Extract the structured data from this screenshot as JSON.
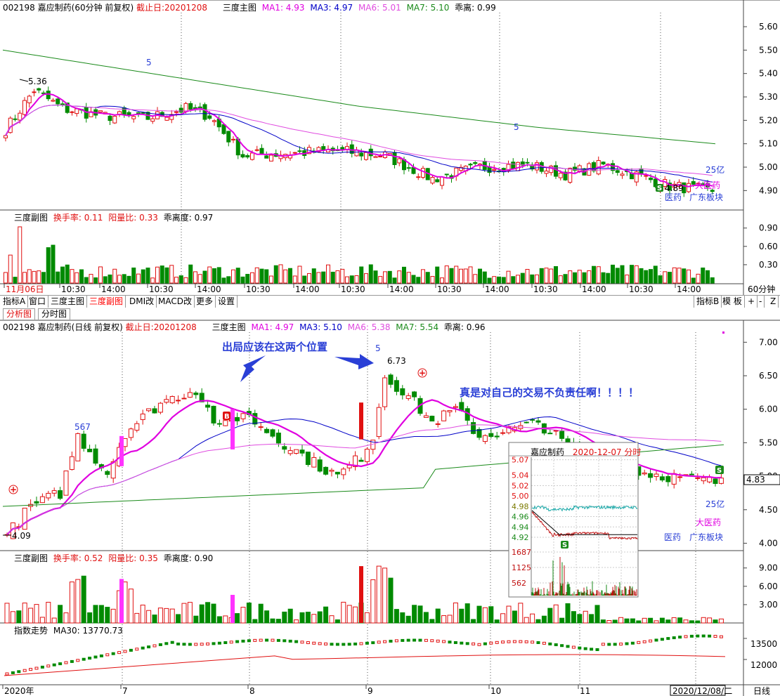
{
  "colors": {
    "up": "#e01010",
    "down": "#008a00",
    "ma1": "#e000e0",
    "ma3": "#0000c8",
    "ma6": "#e04ce0",
    "ma7": "#1a8a1a",
    "accent": "#e01010",
    "grid": "#333333"
  },
  "chart_data": [
    {
      "panel": "top-main",
      "type": "candlestick",
      "symbol": "002198",
      "name": "嘉应制药",
      "period": "60分钟 前复权",
      "cutoff_label": "截止日:20201208",
      "indicator": "三度主图",
      "ma": [
        {
          "name": "MA1",
          "value": "4.93"
        },
        {
          "name": "MA3",
          "value": "4.97"
        },
        {
          "name": "MA6",
          "value": "5.01"
        },
        {
          "name": "MA7",
          "value": "5.10"
        }
      ],
      "deviation": "乖离: 0.99",
      "ylim": [
        4.82,
        5.66
      ],
      "yticks": [
        "5.60",
        "5.50",
        "5.40",
        "5.30",
        "5.20",
        "5.10",
        "5.00",
        "4.90"
      ],
      "ma7_series": [
        5.5,
        5.38,
        5.26,
        5.17,
        5.1
      ],
      "annotations": [
        "5",
        "5",
        "5.36",
        "4.89",
        "25亿",
        "大医药",
        "医药",
        "广东板块",
        "S"
      ]
    },
    {
      "panel": "top-sub",
      "type": "bar",
      "indicator": "三度副图",
      "fields": [
        {
          "label": "换手率",
          "value": "0.11"
        },
        {
          "label": "阳量比",
          "value": "0.33"
        },
        {
          "label": "乖离度",
          "value": "0.97"
        }
      ],
      "ylim": [
        0,
        1.0
      ],
      "yticks": [
        "0.90",
        "0.60",
        "0.30"
      ],
      "xticks": [
        "11月06日",
        "10:30",
        "14:00",
        "10:30",
        "14:00",
        "10:30",
        "14:00",
        "10:30",
        "14:00",
        "10:30",
        "14:00",
        "10:30",
        "14:00",
        "10:30",
        "14:00"
      ],
      "period_label": "60分钟"
    },
    {
      "panel": "bottom-main",
      "type": "candlestick",
      "symbol": "002198",
      "name": "嘉应制药",
      "period": "日线 前复权",
      "cutoff_label": "截止日:20201208",
      "indicator": "三度主图",
      "ma": [
        {
          "name": "MA1",
          "value": "4.97"
        },
        {
          "name": "MA3",
          "value": "5.10"
        },
        {
          "name": "MA6",
          "value": "5.38"
        },
        {
          "name": "MA7",
          "value": "5.54"
        }
      ],
      "deviation": "乖离: 0.96",
      "ylim": [
        3.9,
        7.15
      ],
      "yticks": [
        "7.00",
        "6.50",
        "6.00",
        "5.50",
        "5.00",
        "4.50",
        "4.00"
      ],
      "current_price": "4.83",
      "annotations": [
        "出局应该在这两个位置",
        "真是对自己的交易不负责任啊！！！！",
        "567",
        "5",
        "6.73",
        "4.09",
        "25亿",
        "大医药",
        "医药",
        "广东板块",
        "B",
        "S"
      ]
    },
    {
      "panel": "bottom-sub",
      "type": "bar",
      "indicator": "三度副图",
      "fields": [
        {
          "label": "换手率",
          "value": "0.52"
        },
        {
          "label": "阳量比",
          "value": "0.35"
        },
        {
          "label": "乖离度",
          "value": "0.90"
        }
      ],
      "ylim": [
        0,
        10
      ],
      "yticks": [
        "9.00",
        "6.00",
        "3.00"
      ]
    },
    {
      "panel": "index",
      "type": "line",
      "indicator": "指数走势",
      "ma_label": "MA30: 13770.73",
      "yticks": [
        "13500",
        "12000"
      ],
      "xticks": [
        "2020年",
        "7",
        "8",
        "9",
        "10",
        "11",
        "2020/12/08/二"
      ],
      "period_label": "日线"
    },
    {
      "panel": "intraday-inset",
      "type": "line",
      "name": "嘉应制药",
      "date": "2020-12-07 分时",
      "ylim": [
        4.905,
        5.075
      ],
      "yticks": [
        "5.07",
        "5.04",
        "5.02",
        "5.00",
        "4.98",
        "4.96",
        "4.94",
        "4.92"
      ],
      "vol_ticks": [
        "1687",
        "1125",
        "562"
      ],
      "marker": "S"
    }
  ],
  "tabs_row": [
    "指标A",
    "窗口",
    "三度主图",
    "三度副图",
    "DMI改",
    "MACD改",
    "更多",
    "设置"
  ],
  "tabs_right": [
    "指标B",
    "模 板",
    "+",
    "-",
    "Z"
  ],
  "view_tabs": [
    "分析图",
    "分时图"
  ]
}
